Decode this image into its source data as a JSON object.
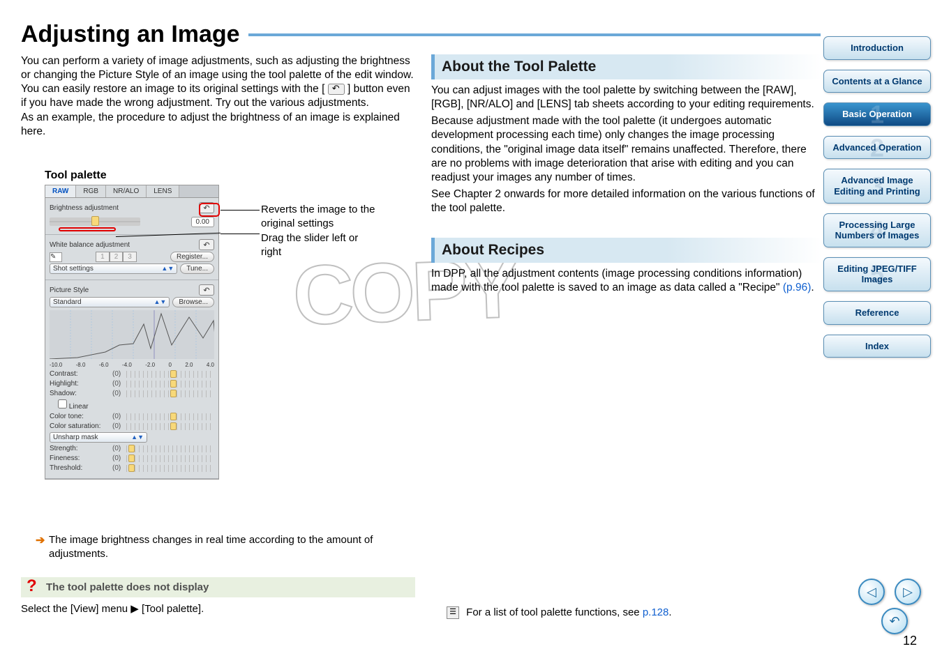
{
  "page": {
    "title": "Adjusting an Image",
    "number": "12"
  },
  "intro": {
    "p1a": "You can perform a variety of image adjustments, such as adjusting the brightness or changing the Picture Style of an image using the tool palette of the edit window. You can easily restore an image to its original settings with the [",
    "p1b": "] button even if you have made the wrong adjustment. Try out the various adjustments.",
    "p2": "As an example, the procedure to adjust the brightness of an image is explained here."
  },
  "tp_label": "Tool palette",
  "callouts": {
    "revert": "Reverts the image to the original settings",
    "drag": "Drag the slider left or right"
  },
  "tool_palette": {
    "tabs": [
      "RAW",
      "RGB",
      "NR/ALO",
      "LENS"
    ],
    "active_tab": 0,
    "brightness_label": "Brightness adjustment",
    "brightness_value": "0.00",
    "wb_label": "White balance adjustment",
    "wb_pills": [
      "1",
      "2",
      "3"
    ],
    "wb_register": "Register...",
    "wb_shot": "Shot settings",
    "wb_tune": "Tune...",
    "ps_label": "Picture Style",
    "ps_value": "Standard",
    "ps_browse": "Browse...",
    "axis": [
      "-10.0",
      "-8.0",
      "-6.0",
      "-4.0",
      "-2.0",
      "0",
      "2.0",
      "4.0"
    ],
    "adjustments": [
      {
        "label": "Contrast:",
        "val": "(0)",
        "thumb": 50
      },
      {
        "label": "Highlight:",
        "val": "(0)",
        "thumb": 50
      },
      {
        "label": "Shadow:",
        "val": "(0)",
        "thumb": 50
      }
    ],
    "linear_label": "Linear",
    "color_adjustments": [
      {
        "label": "Color tone:",
        "val": "(0)",
        "thumb": 50
      },
      {
        "label": "Color saturation:",
        "val": "(0)",
        "thumb": 50
      }
    ],
    "unsharp_label": "Unsharp mask",
    "unsharp": [
      {
        "label": "Strength:",
        "val": "(0)",
        "thumb": 2
      },
      {
        "label": "Fineness:",
        "val": "(0)",
        "thumb": 2
      },
      {
        "label": "Threshold:",
        "val": "(0)",
        "thumb": 2
      }
    ]
  },
  "result": "The image brightness changes in real time according to the amount of adjustments.",
  "troubleshoot": {
    "title": "The tool palette does not display",
    "answer": "Select the [View] menu ▶ [Tool palette]."
  },
  "col2": {
    "s1_title": "About the Tool Palette",
    "s1_p1": "You can adjust images with the tool palette by switching between the [RAW], [RGB], [NR/ALO] and [LENS] tab sheets according to your editing requirements.",
    "s1_p2": "Because adjustment made with the tool palette (it undergoes automatic development processing each time) only changes the image processing conditions, the \"original image data itself\" remains unaffected. Therefore, there are no problems with image deterioration that arise with editing and you can readjust your images any number of times.",
    "s1_p3": "See Chapter 2 onwards for more detailed information on the various functions of the tool palette.",
    "s2_title": "About Recipes",
    "s2_p1a": "In DPP, all the adjustment contents (image processing conditions information) made with the tool palette is saved to an image as data called a \"Recipe\" ",
    "s2_p1_link": "(p.96)",
    "s2_p1b": "."
  },
  "watermark": "COPY",
  "footnote": {
    "text_a": "For a list of tool palette functions, see ",
    "link": "p.128",
    "text_b": "."
  },
  "sidenav": [
    {
      "label": "Introduction",
      "active": false
    },
    {
      "label": "Contents at a Glance",
      "active": false
    },
    {
      "label": "Basic Operation",
      "active": true,
      "num": "1"
    },
    {
      "label": "Advanced Operation",
      "active": false,
      "num": "2"
    },
    {
      "label": "Advanced Image Editing and Printing",
      "active": false,
      "num": "3"
    },
    {
      "label": "Processing Large Numbers of Images",
      "active": false,
      "num": "4"
    },
    {
      "label": "Editing JPEG/TIFF Images",
      "active": false,
      "num": "5"
    },
    {
      "label": "Reference",
      "active": false
    },
    {
      "label": "Index",
      "active": false
    }
  ]
}
